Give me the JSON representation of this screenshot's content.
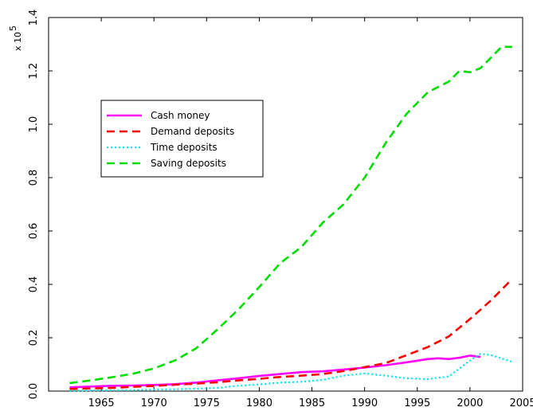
{
  "chart_data": {
    "type": "line",
    "title": "",
    "xlabel": "",
    "ylabel": "",
    "y_multiplier_label": "x 10",
    "y_multiplier_exponent": "5",
    "xlim": [
      1960,
      2005
    ],
    "ylim": [
      0,
      1.4
    ],
    "x_ticks": [
      1965,
      1970,
      1975,
      1980,
      1985,
      1990,
      1995,
      2000,
      2005
    ],
    "y_ticks": [
      0.0,
      0.2,
      0.4,
      0.6,
      0.8,
      1.0,
      1.2,
      1.4
    ],
    "y_tick_labels": [
      "0.0",
      "0.2",
      "0.4",
      "0.6",
      "0.8",
      "1.0",
      "1.2",
      "1.4"
    ],
    "grid": false,
    "legend_position": "upper-left",
    "series": [
      {
        "name": "Cash money",
        "color": "#ff00ff",
        "style": "solid",
        "x": [
          1962,
          1964,
          1966,
          1968,
          1970,
          1972,
          1974,
          1976,
          1978,
          1980,
          1982,
          1984,
          1986,
          1988,
          1990,
          1992,
          1994,
          1996,
          1997,
          1998,
          1999,
          2000,
          2001
        ],
        "y": [
          0.014,
          0.017,
          0.02,
          0.021,
          0.023,
          0.026,
          0.032,
          0.04,
          0.048,
          0.057,
          0.064,
          0.071,
          0.074,
          0.081,
          0.088,
          0.097,
          0.108,
          0.12,
          0.123,
          0.12,
          0.125,
          0.133,
          0.128
        ]
      },
      {
        "name": "Demand deposits",
        "color": "#ff0000",
        "style": "dashed",
        "x": [
          1962,
          1964,
          1966,
          1968,
          1970,
          1972,
          1974,
          1976,
          1978,
          1980,
          1982,
          1984,
          1986,
          1988,
          1990,
          1992,
          1994,
          1996,
          1998,
          2000,
          2002,
          2004
        ],
        "y": [
          0.008,
          0.01,
          0.012,
          0.016,
          0.019,
          0.024,
          0.028,
          0.033,
          0.04,
          0.046,
          0.053,
          0.058,
          0.064,
          0.075,
          0.09,
          0.105,
          0.135,
          0.165,
          0.205,
          0.27,
          0.34,
          0.42
        ]
      },
      {
        "name": "Time deposits",
        "color": "#00e5ee",
        "style": "dotted",
        "x": [
          1962,
          1964,
          1966,
          1968,
          1970,
          1972,
          1974,
          1976,
          1978,
          1980,
          1982,
          1984,
          1986,
          1988,
          1990,
          1992,
          1994,
          1996,
          1998,
          2000,
          2001,
          2002,
          2004
        ],
        "y": [
          0.001,
          0.002,
          0.003,
          0.004,
          0.006,
          0.007,
          0.009,
          0.012,
          0.02,
          0.025,
          0.032,
          0.035,
          0.042,
          0.058,
          0.066,
          0.058,
          0.048,
          0.045,
          0.055,
          0.115,
          0.14,
          0.135,
          0.11
        ]
      },
      {
        "name": "Saving deposits",
        "color": "#00dd00",
        "style": "dashed",
        "x": [
          1962,
          1964,
          1966,
          1968,
          1970,
          1972,
          1974,
          1976,
          1978,
          1980,
          1982,
          1984,
          1986,
          1988,
          1990,
          1992,
          1994,
          1996,
          1998,
          1999,
          2000,
          2001,
          2002,
          2003,
          2004
        ],
        "y": [
          0.03,
          0.04,
          0.052,
          0.065,
          0.085,
          0.115,
          0.16,
          0.23,
          0.305,
          0.39,
          0.48,
          0.54,
          0.63,
          0.7,
          0.8,
          0.93,
          1.04,
          1.12,
          1.16,
          1.2,
          1.195,
          1.21,
          1.25,
          1.29,
          1.29
        ]
      }
    ]
  }
}
